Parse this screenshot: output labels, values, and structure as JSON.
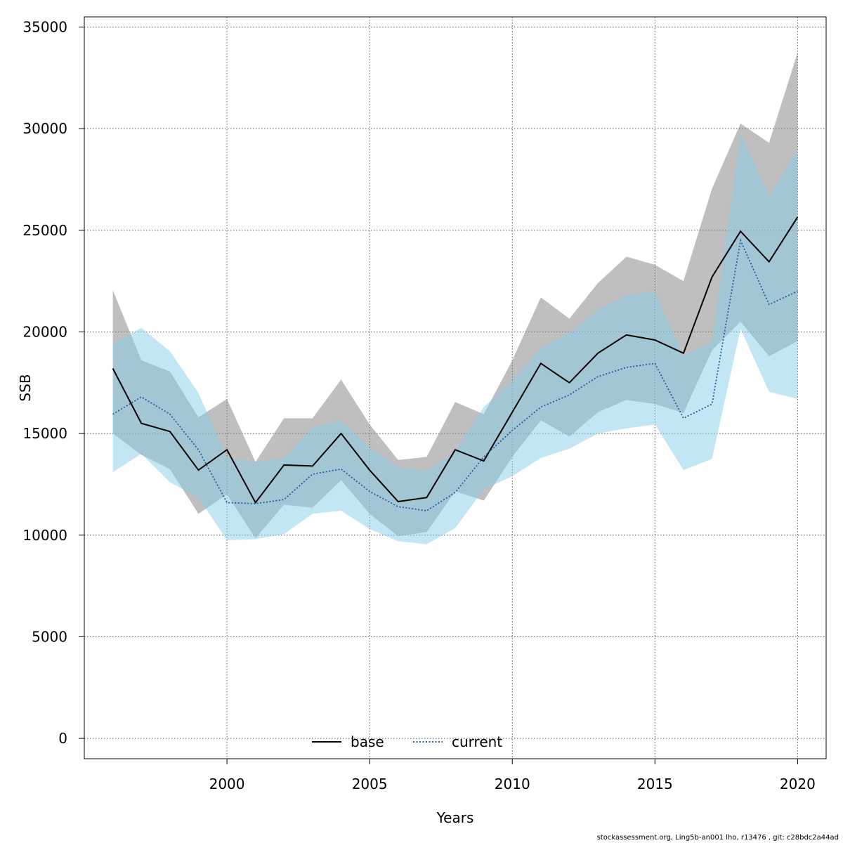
{
  "footer": "stockassessment.org, Ling5b-an001  lho, r13476 , git: c28bdc2a44ad",
  "chart_data": {
    "type": "line",
    "xlabel": "Years",
    "ylabel": "SSB",
    "xlim": [
      1995,
      2021
    ],
    "ylim": [
      -1000,
      35500
    ],
    "x_ticks": [
      2000,
      2005,
      2010,
      2015,
      2020
    ],
    "y_ticks": [
      0,
      5000,
      10000,
      15000,
      20000,
      25000,
      30000,
      35000
    ],
    "grid": true,
    "legend_position": "bottom-center",
    "x": [
      1996,
      1997,
      1998,
      1999,
      2000,
      2001,
      2002,
      2003,
      2004,
      2005,
      2006,
      2007,
      2008,
      2009,
      2010,
      2011,
      2012,
      2013,
      2014,
      2015,
      2016,
      2017,
      2018,
      2019,
      2020
    ],
    "series": [
      {
        "name": "base",
        "color": "#000000",
        "band_color": "#808080",
        "line_style": "solid",
        "values": [
          18200,
          15500,
          15100,
          13200,
          14200,
          11600,
          13450,
          13400,
          15000,
          13200,
          11650,
          11850,
          14200,
          13650,
          16050,
          18450,
          17500,
          18950,
          19850,
          19600,
          18950,
          22700,
          24950,
          23450,
          25650
        ],
        "lower": [
          15000,
          13950,
          13250,
          11050,
          12000,
          9850,
          11500,
          11350,
          12700,
          11050,
          9950,
          10150,
          12150,
          11700,
          13850,
          15650,
          14850,
          16050,
          16650,
          16450,
          16000,
          19100,
          20500,
          18800,
          19550
        ],
        "upper": [
          22050,
          18600,
          18050,
          15800,
          16700,
          13600,
          15750,
          15750,
          17650,
          15450,
          13700,
          13850,
          16550,
          15950,
          18600,
          21700,
          20650,
          22400,
          23700,
          23300,
          22500,
          27050,
          30250,
          29300,
          33750
        ]
      },
      {
        "name": "current",
        "color": "#1f5f9a",
        "band_color": "#87ceeb",
        "line_style": "dotted",
        "values": [
          15950,
          16800,
          15950,
          14200,
          11600,
          11550,
          11750,
          13000,
          13250,
          12150,
          11400,
          11200,
          12100,
          13850,
          15150,
          16300,
          16900,
          17800,
          18250,
          18450,
          15750,
          16450,
          24500,
          21350,
          22000
        ],
        "lower": [
          13100,
          14000,
          12600,
          11850,
          9750,
          9800,
          10050,
          11050,
          11200,
          10300,
          9700,
          9550,
          10350,
          12250,
          12900,
          13800,
          14250,
          15000,
          15250,
          15450,
          13200,
          13750,
          20150,
          17050,
          16700
        ],
        "upper": [
          19400,
          20200,
          19050,
          17000,
          13800,
          13600,
          13800,
          15300,
          15650,
          14300,
          13350,
          13150,
          14100,
          16300,
          17600,
          19200,
          19950,
          21100,
          21800,
          22000,
          18800,
          19550,
          29750,
          26650,
          29000
        ]
      }
    ]
  }
}
